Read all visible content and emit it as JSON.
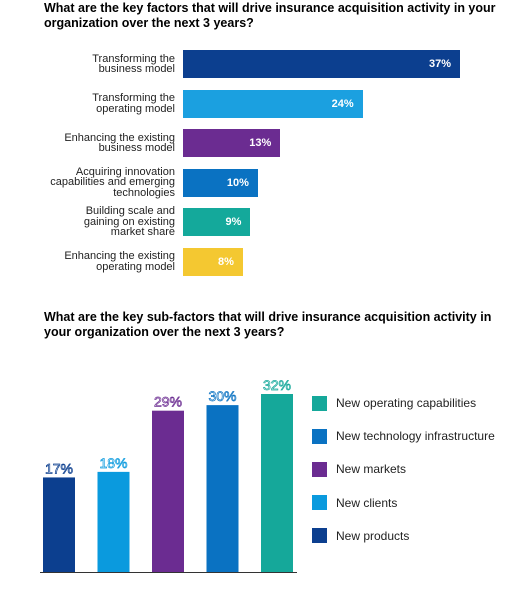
{
  "chart_data": [
    {
      "type": "bar",
      "orientation": "horizontal",
      "title": "What are the key factors that will drive insurance acquisition activity in your organization over the next 3 years?",
      "unit": "%",
      "categories": [
        "Transforming the business model",
        "Transforming the operating model",
        "Enhancing the existing business model",
        "Acquiring innovation capabilities and emerging technologies",
        "Building scale and gaining on existing market share",
        "Enhancing the existing operating model"
      ],
      "category_lines": [
        [
          "Transforming the",
          "business model"
        ],
        [
          "Transforming the",
          "operating model"
        ],
        [
          "Enhancing the existing",
          "business model"
        ],
        [
          "Acquiring innovation",
          "capabilities and emerging",
          "technologies"
        ],
        [
          "Building scale and",
          "gaining on existing",
          "market share"
        ],
        [
          "Enhancing the existing",
          "operating model"
        ]
      ],
      "values": [
        37,
        24,
        13,
        10,
        9,
        8
      ],
      "value_labels": [
        "37%",
        "24%",
        "13%",
        "10%",
        "9%",
        "8%"
      ],
      "colors": [
        "#0c3f8f",
        "#1ba0e0",
        "#6b2c91",
        "#0a72c2",
        "#14a99b",
        "#f4c831"
      ]
    },
    {
      "type": "bar",
      "orientation": "vertical",
      "title": "What are the key sub-factors that will drive insurance acquisition activity in your organization over the next 3 years?",
      "unit": "%",
      "categories": [
        "New products",
        "New clients",
        "New markets",
        "New technology infrastructure",
        "New operating capabilities"
      ],
      "values": [
        17,
        18,
        29,
        30,
        32
      ],
      "value_labels": [
        "17%",
        "18%",
        "29%",
        "30%",
        "32%"
      ],
      "colors": [
        "#0c3f8f",
        "#0a9ade",
        "#6b2c91",
        "#0a72c2",
        "#15a89a"
      ],
      "legend": [
        {
          "label": "New operating capabilities",
          "color": "#15a89a"
        },
        {
          "label": "New technology infrastructure",
          "color": "#0a72c2"
        },
        {
          "label": "New markets",
          "color": "#6b2c91"
        },
        {
          "label": "New clients",
          "color": "#0a9ade"
        },
        {
          "label": "New products",
          "color": "#0c3f8f"
        }
      ],
      "legend_position": "right"
    }
  ]
}
